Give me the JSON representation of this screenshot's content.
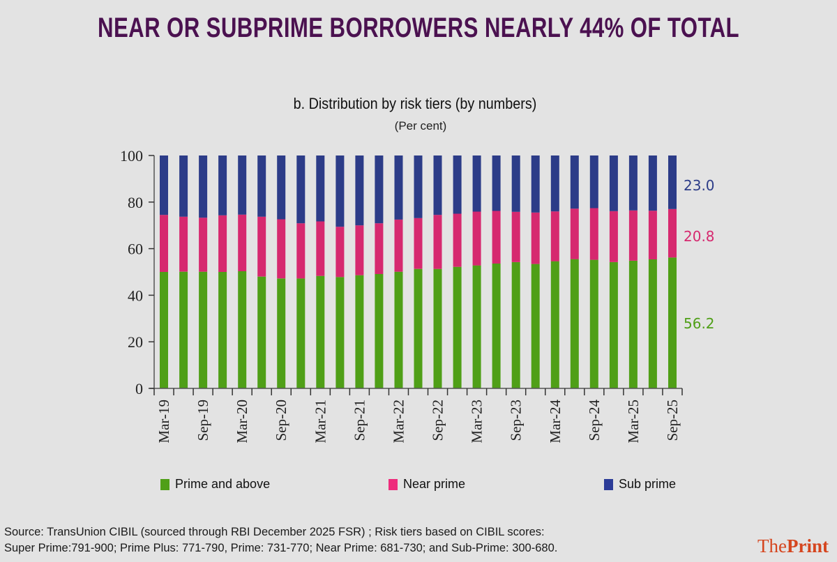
{
  "headline": "NEAR OR SUBPRIME BORROWERS NEARLY 44% OF TOTAL",
  "colors": {
    "headline": "#4b1150",
    "prime": "#4f9f17",
    "near_prime": "#d6296f",
    "sub_prime": "#2c3c88",
    "logo": "#d5451e"
  },
  "chart_data": {
    "type": "bar",
    "stacked": true,
    "title": "b. Distribution by risk tiers (by numbers)",
    "subtitle": "(Per cent)",
    "xlabel": "",
    "ylabel": "",
    "ylim": [
      0,
      100
    ],
    "yticks": [
      "0",
      "20",
      "40",
      "60",
      "80",
      "100"
    ],
    "ytick_values": [
      0,
      20,
      40,
      60,
      80,
      100
    ],
    "grid": false,
    "legend_position": "bottom",
    "categories": [
      "Mar-19",
      "Jun-19",
      "Sep-19",
      "Dec-19",
      "Mar-20",
      "Jun-20",
      "Sep-20",
      "Dec-20",
      "Mar-21",
      "Jun-21",
      "Sep-21",
      "Dec-21",
      "Mar-22",
      "Jun-22",
      "Sep-22",
      "Dec-22",
      "Mar-23",
      "Jun-23",
      "Sep-23",
      "Dec-23",
      "Mar-24",
      "Jun-24",
      "Sep-24",
      "Dec-24",
      "Mar-25",
      "Jun-25",
      "Sep-25"
    ],
    "xtick_labels": [
      "Mar-19",
      "",
      "Sep-19",
      "",
      "Mar-20",
      "",
      "Sep-20",
      "",
      "Mar-21",
      "",
      "Sep-21",
      "",
      "Mar-22",
      "",
      "Sep-22",
      "",
      "Mar-23",
      "",
      "Sep-23",
      "",
      "Mar-24",
      "",
      "Sep-24",
      "",
      "Mar-25",
      "",
      "Sep-25"
    ],
    "series": [
      {
        "name": "Prime and above",
        "color": "#4f9f17",
        "values": [
          50.0,
          50.1,
          50.1,
          50.0,
          50.3,
          48.0,
          47.2,
          47.2,
          48.3,
          47.8,
          48.6,
          49.1,
          50.1,
          51.3,
          51.3,
          52.2,
          52.8,
          53.6,
          54.2,
          53.4,
          54.6,
          55.5,
          55.2,
          54.2,
          54.8,
          55.4,
          56.2
        ]
      },
      {
        "name": "Near prime",
        "color": "#d6296f",
        "values": [
          24.5,
          23.6,
          23.2,
          24.3,
          24.3,
          25.7,
          25.4,
          23.7,
          23.4,
          21.6,
          21.4,
          21.8,
          22.4,
          21.8,
          23.2,
          22.8,
          23.1,
          22.6,
          21.6,
          22.1,
          21.4,
          21.7,
          22.2,
          21.9,
          21.6,
          20.9,
          20.8
        ]
      },
      {
        "name": "Sub prime",
        "color": "#2c3c88",
        "values": [
          25.5,
          26.3,
          26.7,
          25.7,
          25.4,
          26.3,
          27.4,
          29.1,
          28.3,
          30.6,
          30.0,
          29.1,
          27.5,
          26.9,
          25.5,
          25.0,
          24.1,
          23.8,
          24.2,
          24.5,
          24.0,
          22.8,
          22.6,
          23.9,
          23.6,
          23.7,
          23.0
        ]
      }
    ],
    "annotations": [
      {
        "text": "23.0",
        "series": "Sub prime"
      },
      {
        "text": "20.8",
        "series": "Near prime"
      },
      {
        "text": "56.2",
        "series": "Prime and above"
      }
    ]
  },
  "legend": [
    {
      "label": "Prime and above",
      "color": "#4f9f17"
    },
    {
      "label": "Near prime",
      "color": "#d6296f"
    },
    {
      "label": "Sub prime",
      "color": "#2c3c88"
    }
  ],
  "source": {
    "line1": "Source: TransUnion CIBIL (sourced through RBI December 2025 FSR) ; Risk tiers based on CIBIL scores:",
    "line2": "Super Prime:791-900; Prime Plus: 771-790, Prime: 731-770; Near Prime: 681-730; and Sub-Prime: 300-680."
  },
  "logo": {
    "part1": "The",
    "part2": "Print"
  }
}
